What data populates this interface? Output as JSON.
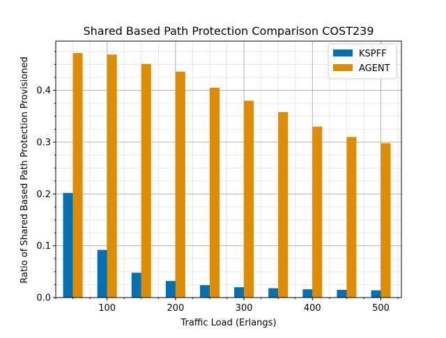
{
  "chart_data": {
    "type": "bar",
    "title": "Shared Based Path Protection Comparison COST239",
    "xlabel": "Traffic Load (Erlangs)",
    "ylabel": "Ratio of Shared Based Path Protection Provisioned",
    "x": [
      50,
      100,
      150,
      200,
      250,
      300,
      350,
      400,
      450,
      500
    ],
    "xlim": [
      25,
      530
    ],
    "ylim": [
      0,
      0.495
    ],
    "xticks": [
      100,
      200,
      300,
      400,
      500
    ],
    "yticks": [
      0.0,
      0.1,
      0.2,
      0.3,
      0.4
    ],
    "ytick_labels": [
      "0.0",
      "0.1",
      "0.2",
      "0.3",
      "0.4"
    ],
    "series": [
      {
        "name": "KSPFF",
        "color": "#0072b2",
        "values": [
          0.202,
          0.092,
          0.048,
          0.032,
          0.024,
          0.02,
          0.018,
          0.016,
          0.015,
          0.014
        ]
      },
      {
        "name": "AGENT",
        "color": "#e08c00",
        "values": [
          0.472,
          0.469,
          0.451,
          0.436,
          0.405,
          0.38,
          0.358,
          0.33,
          0.31,
          0.298
        ]
      }
    ],
    "grid": "major and minor",
    "legend": "top-right"
  }
}
